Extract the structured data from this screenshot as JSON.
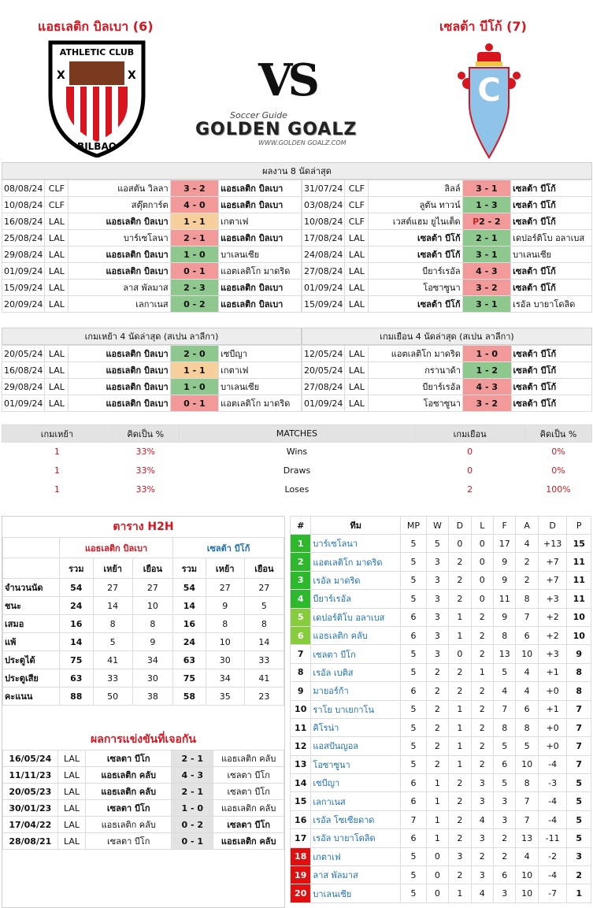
{
  "home": {
    "name": "แอธเลติก บิลเบา (6)",
    "logo_text": "ATHLETIC CLUB",
    "logo_bottom": "BILBAO"
  },
  "away": {
    "name": "เซลต้า บีโก้ (7)"
  },
  "vs": "VS",
  "brand": {
    "small": "Soccer Guide",
    "big": "GOLDEN GOALZ",
    "url": "WWW.GOLDEN GOALZ.COM"
  },
  "colors": {
    "accent_red": "#d8151f",
    "win": "#8ec88e",
    "loss": "#f29a9a",
    "draw": "#f6cf9c",
    "blue": "#1d6fb8"
  },
  "last8": {
    "title": "ผลงาน 8 นัดล่าสุด",
    "home": [
      [
        "08/08/24",
        "CLF",
        "แอสตัน วิลลา",
        "3 - 2",
        "แอธเลติก บิลเบา",
        "rd",
        "l"
      ],
      [
        "10/08/24",
        "CLF",
        "สตุ๊ตการ์ต",
        "4 - 0",
        "แอธเลติก บิลเบา",
        "rd",
        "l"
      ],
      [
        "16/08/24",
        "LAL",
        "แอธเลติก บิลเบา",
        "1 - 1",
        "เกตาเฟ",
        "o",
        "h"
      ],
      [
        "25/08/24",
        "LAL",
        "บาร์เซโลนา",
        "2 - 1",
        "แอธเลติก บิลเบา",
        "rd",
        "l"
      ],
      [
        "29/08/24",
        "LAL",
        "แอธเลติก บิลเบา",
        "1 - 0",
        "บาเลนเซีย",
        "g",
        "h"
      ],
      [
        "01/09/24",
        "LAL",
        "แอธเลติก บิลเบา",
        "0 - 1",
        "แอตเลติโก มาดริด",
        "rd",
        "h"
      ],
      [
        "15/09/24",
        "LAL",
        "ลาส พัลมาส",
        "2 - 3",
        "แอธเลติก บิลเบา",
        "g",
        "r"
      ],
      [
        "20/09/24",
        "LAL",
        "เลกาเนส",
        "0 - 2",
        "แอธเลติก บิลเบา",
        "g",
        "r"
      ]
    ],
    "away": [
      [
        "31/07/24",
        "CLF",
        "ลิลล์",
        "3 - 1",
        "เซลต้า บีโก้",
        "rd",
        "r"
      ],
      [
        "03/08/24",
        "CLF",
        "ลูตัน ทาวน์",
        "1 - 3",
        "เซลต้า บีโก้",
        "g",
        "r"
      ],
      [
        "10/08/24",
        "CLF",
        "เวสต์แฮม ยูไนเต็ด",
        "P2 - 2",
        "เซลต้า บีโก้",
        "rd",
        "r"
      ],
      [
        "17/08/24",
        "LAL",
        "เซลต้า บีโก้",
        "2 - 1",
        "เดปอร์ติโบ อลาเบส",
        "g",
        "h"
      ],
      [
        "24/08/24",
        "LAL",
        "เซลต้า บีโก้",
        "3 - 1",
        "บาเลนเซีย",
        "g",
        "h"
      ],
      [
        "27/08/24",
        "LAL",
        "บียาร์เรอัล",
        "4 - 3",
        "เซลต้า บีโก้",
        "rd",
        "r"
      ],
      [
        "01/09/24",
        "LAL",
        "โอซาซูนา",
        "3 - 2",
        "เซลต้า บีโก้",
        "rd",
        "r"
      ],
      [
        "15/09/24",
        "LAL",
        "เซลต้า บีโก้",
        "3 - 1",
        "เรอัล บายาโดลิด",
        "g",
        "h"
      ]
    ]
  },
  "last4": {
    "home_title": "เกมเหย้า 4 นัดล่าสุด (สเปน ลาลีกา)",
    "away_title": "เกมเยือน 4 นัดล่าสุด (สเปน ลาลีกา)",
    "home": [
      [
        "20/05/24",
        "LAL",
        "แอธเลติก บิลเบา",
        "2 - 0",
        "เซบีญา",
        "g",
        "h"
      ],
      [
        "16/08/24",
        "LAL",
        "แอธเลติก บิลเบา",
        "1 - 1",
        "เกตาเฟ",
        "o",
        "h"
      ],
      [
        "29/08/24",
        "LAL",
        "แอธเลติก บิลเบา",
        "1 - 0",
        "บาเลนเซีย",
        "g",
        "h"
      ],
      [
        "01/09/24",
        "LAL",
        "แอธเลติก บิลเบา",
        "0 - 1",
        "แอตเลติโก มาดริด",
        "rd",
        "h"
      ]
    ],
    "away": [
      [
        "12/05/24",
        "LAL",
        "แอตเลติโก มาดริด",
        "1 - 0",
        "เซลต้า บีโก้",
        "rd",
        "r"
      ],
      [
        "20/05/24",
        "LAL",
        "กรานาด้า",
        "1 - 2",
        "เซลต้า บีโก้",
        "g",
        "r"
      ],
      [
        "27/08/24",
        "LAL",
        "บียาร์เรอัล",
        "4 - 3",
        "เซลต้า บีโก้",
        "rd",
        "r"
      ],
      [
        "01/09/24",
        "LAL",
        "โอซาซูนา",
        "3 - 2",
        "เซลต้า บีโก้",
        "rd",
        "r"
      ]
    ]
  },
  "summary": {
    "headers": [
      "เกมเหย้า",
      "คิดเป็น  %",
      "MATCHES",
      "เกมเยือน",
      "คิดเป็น  %"
    ],
    "rows": [
      [
        "1",
        "33%",
        "Wins",
        "0",
        "0%"
      ],
      [
        "1",
        "33%",
        "Draws",
        "0",
        "0%"
      ],
      [
        "1",
        "33%",
        "Loses",
        "2",
        "100%"
      ]
    ]
  },
  "h2h": {
    "title": "ตาราง H2H",
    "home": "แอธเลติก บิลเบา",
    "away": "เซลต้า บีโก้",
    "cols": [
      "รวม",
      "เหย้า",
      "เยือน",
      "รวม",
      "เหย้า",
      "เยือน"
    ],
    "rows": [
      [
        "จำนวนนัด",
        "54",
        "27",
        "27",
        "54",
        "27",
        "27"
      ],
      [
        "ชนะ",
        "24",
        "14",
        "10",
        "14",
        "9",
        "5"
      ],
      [
        "เสมอ",
        "16",
        "8",
        "8",
        "16",
        "8",
        "8"
      ],
      [
        "แพ้",
        "14",
        "5",
        "9",
        "24",
        "10",
        "14"
      ],
      [
        "ประตูได้",
        "75",
        "41",
        "34",
        "63",
        "30",
        "33"
      ],
      [
        "ประตูเสีย",
        "63",
        "33",
        "30",
        "75",
        "34",
        "41"
      ],
      [
        "คะแนน",
        "88",
        "50",
        "38",
        "58",
        "35",
        "23"
      ]
    ],
    "results_title": "ผลการแข่งขันที่เจอกัน",
    "results": [
      [
        "16/05/24",
        "LAL",
        "เซลตา บีโก",
        "2 - 1",
        "แอธเลติก คลับ",
        "h"
      ],
      [
        "11/11/23",
        "LAL",
        "แอธเลติก คลับ",
        "4 - 3",
        "เซลตา บีโก",
        "h"
      ],
      [
        "20/05/23",
        "LAL",
        "แอธเลติก คลับ",
        "2 - 1",
        "เซลตา บีโก",
        "h"
      ],
      [
        "30/01/23",
        "LAL",
        "เซลตา บีโก",
        "1 - 0",
        "แอธเลติก คลับ",
        "h"
      ],
      [
        "17/04/22",
        "LAL",
        "แอธเลติก คลับ",
        "0 - 2",
        "เซลตา บีโก",
        "r"
      ],
      [
        "28/08/21",
        "LAL",
        "เซลตา บีโก",
        "0 - 1",
        "แอธเลติก คลับ",
        "r"
      ]
    ]
  },
  "league": {
    "headers": [
      "#",
      "ทีม",
      "MP",
      "W",
      "D",
      "L",
      "F",
      "A",
      "D",
      "P"
    ],
    "rows": [
      [
        "1",
        "บาร์เซโลนา",
        "5",
        "5",
        "0",
        "0",
        "17",
        "4",
        "+13",
        "15",
        "#2eb82e"
      ],
      [
        "2",
        "แอตเลติโก มาดริด",
        "5",
        "3",
        "2",
        "0",
        "9",
        "2",
        "+7",
        "11",
        "#2eb82e"
      ],
      [
        "3",
        "เรอัล มาดริด",
        "5",
        "3",
        "2",
        "0",
        "9",
        "2",
        "+7",
        "11",
        "#2eb82e"
      ],
      [
        "4",
        "บียาร์เรอัล",
        "5",
        "3",
        "2",
        "0",
        "11",
        "8",
        "+3",
        "11",
        "#2eb82e"
      ],
      [
        "5",
        "เดปอร์ติโบ อลาเบส",
        "6",
        "3",
        "1",
        "2",
        "9",
        "7",
        "+2",
        "10",
        "#86cc3d"
      ],
      [
        "6",
        "แอธเลติก คลับ",
        "6",
        "3",
        "1",
        "2",
        "8",
        "6",
        "+2",
        "10",
        "#86cc3d"
      ],
      [
        "7",
        "เซลตา บีโก",
        "5",
        "3",
        "0",
        "2",
        "13",
        "10",
        "+3",
        "9",
        ""
      ],
      [
        "8",
        "เรอัล เบติส",
        "5",
        "2",
        "2",
        "1",
        "5",
        "4",
        "+1",
        "8",
        ""
      ],
      [
        "9",
        "มายอร์ก้า",
        "6",
        "2",
        "2",
        "2",
        "4",
        "4",
        "+0",
        "8",
        ""
      ],
      [
        "10",
        "ราโย บาเยกาโน",
        "5",
        "2",
        "1",
        "2",
        "7",
        "6",
        "+1",
        "7",
        ""
      ],
      [
        "11",
        "คิโรน่า",
        "5",
        "2",
        "1",
        "2",
        "8",
        "8",
        "+0",
        "7",
        ""
      ],
      [
        "12",
        "แอสปันญอล",
        "5",
        "2",
        "1",
        "2",
        "5",
        "5",
        "+0",
        "7",
        ""
      ],
      [
        "13",
        "โอซาซูนา",
        "5",
        "2",
        "1",
        "2",
        "6",
        "10",
        "-4",
        "7",
        ""
      ],
      [
        "14",
        "เซบีญา",
        "6",
        "1",
        "2",
        "3",
        "5",
        "8",
        "-3",
        "5",
        ""
      ],
      [
        "15",
        "เลกาเนส",
        "6",
        "1",
        "2",
        "3",
        "3",
        "7",
        "-4",
        "5",
        ""
      ],
      [
        "16",
        "เรอัล โซเซียดาด",
        "7",
        "1",
        "2",
        "4",
        "3",
        "7",
        "-4",
        "5",
        ""
      ],
      [
        "17",
        "เรอัล บายาโดลิด",
        "6",
        "1",
        "2",
        "3",
        "2",
        "13",
        "-11",
        "5",
        ""
      ],
      [
        "18",
        "เกตาเฟ",
        "5",
        "0",
        "3",
        "2",
        "2",
        "4",
        "-2",
        "3",
        "#e01010"
      ],
      [
        "19",
        "ลาส พัลมาส",
        "5",
        "0",
        "2",
        "3",
        "6",
        "10",
        "-4",
        "2",
        "#e01010"
      ],
      [
        "20",
        "บาเลนเซีย",
        "5",
        "0",
        "1",
        "4",
        "3",
        "10",
        "-7",
        "1",
        "#e01010"
      ]
    ]
  }
}
